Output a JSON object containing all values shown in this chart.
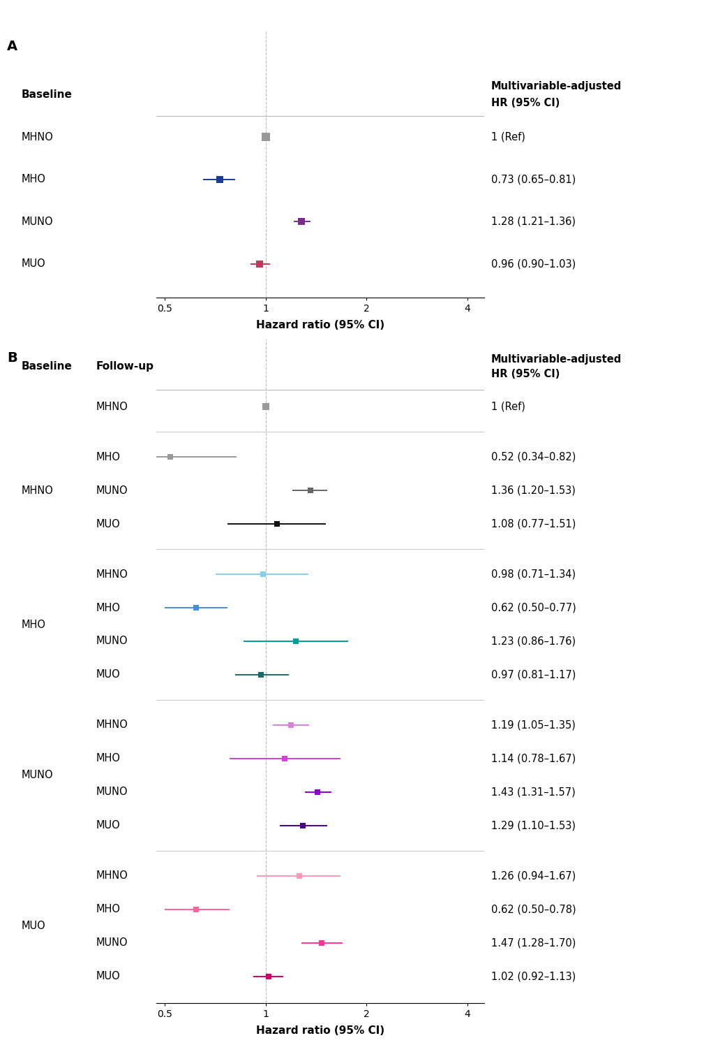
{
  "panel_A": {
    "title": "A",
    "header_label": "Baseline",
    "xlabel": "Hazard ratio (95% CI)",
    "rows": [
      {
        "label": "MHNO",
        "hr": 1.0,
        "lo": 1.0,
        "hi": 1.0,
        "text": "1 (Ref)",
        "color": "#999999",
        "is_ref": true
      },
      {
        "label": "MHO",
        "hr": 0.73,
        "lo": 0.65,
        "hi": 0.81,
        "text": "0.73 (0.65–0.81)",
        "color": "#1F3A93",
        "is_ref": false
      },
      {
        "label": "MUNO",
        "hr": 1.28,
        "lo": 1.21,
        "hi": 1.36,
        "text": "1.28 (1.21–1.36)",
        "color": "#7B2D8B",
        "is_ref": false
      },
      {
        "label": "MUO",
        "hr": 0.96,
        "lo": 0.9,
        "hi": 1.03,
        "text": "0.96 (0.90–1.03)",
        "color": "#C0385A",
        "is_ref": false
      }
    ]
  },
  "panel_B": {
    "title": "B",
    "header_baseline": "Baseline",
    "header_followup": "Follow-up",
    "xlabel": "Hazard ratio (95% CI)",
    "groups": [
      {
        "baseline_label": "",
        "rows": [
          {
            "followup": "MHNO",
            "hr": 1.0,
            "lo": 1.0,
            "hi": 1.0,
            "text": "1 (Ref)",
            "color": "#999999",
            "is_ref": true
          }
        ]
      },
      {
        "baseline_label": "MHNO",
        "rows": [
          {
            "followup": "MHO",
            "hr": 0.52,
            "lo": 0.34,
            "hi": 0.82,
            "text": "0.52 (0.34–0.82)",
            "color": "#999999",
            "is_ref": false
          },
          {
            "followup": "MUNO",
            "hr": 1.36,
            "lo": 1.2,
            "hi": 1.53,
            "text": "1.36 (1.20–1.53)",
            "color": "#666666",
            "is_ref": false
          },
          {
            "followup": "MUO",
            "hr": 1.08,
            "lo": 0.77,
            "hi": 1.51,
            "text": "1.08 (0.77–1.51)",
            "color": "#111111",
            "is_ref": false
          }
        ]
      },
      {
        "baseline_label": "MHO",
        "rows": [
          {
            "followup": "MHNO",
            "hr": 0.98,
            "lo": 0.71,
            "hi": 1.34,
            "text": "0.98 (0.71–1.34)",
            "color": "#87CEEB",
            "is_ref": false
          },
          {
            "followup": "MHO",
            "hr": 0.62,
            "lo": 0.5,
            "hi": 0.77,
            "text": "0.62 (0.50–0.77)",
            "color": "#4490D0",
            "is_ref": false
          },
          {
            "followup": "MUNO",
            "hr": 1.23,
            "lo": 0.86,
            "hi": 1.76,
            "text": "1.23 (0.86–1.76)",
            "color": "#009B9B",
            "is_ref": false
          },
          {
            "followup": "MUO",
            "hr": 0.97,
            "lo": 0.81,
            "hi": 1.17,
            "text": "0.97 (0.81–1.17)",
            "color": "#1B6B6B",
            "is_ref": false
          }
        ]
      },
      {
        "baseline_label": "MUNO",
        "rows": [
          {
            "followup": "MHNO",
            "hr": 1.19,
            "lo": 1.05,
            "hi": 1.35,
            "text": "1.19 (1.05–1.35)",
            "color": "#DA80DA",
            "is_ref": false
          },
          {
            "followup": "MHO",
            "hr": 1.14,
            "lo": 0.78,
            "hi": 1.67,
            "text": "1.14 (0.78–1.67)",
            "color": "#CC44CC",
            "is_ref": false
          },
          {
            "followup": "MUNO",
            "hr": 1.43,
            "lo": 1.31,
            "hi": 1.57,
            "text": "1.43 (1.31–1.57)",
            "color": "#8B00CC",
            "is_ref": false
          },
          {
            "followup": "MUO",
            "hr": 1.29,
            "lo": 1.1,
            "hi": 1.53,
            "text": "1.29 (1.10–1.53)",
            "color": "#4B0082",
            "is_ref": false
          }
        ]
      },
      {
        "baseline_label": "MUO",
        "rows": [
          {
            "followup": "MHNO",
            "hr": 1.26,
            "lo": 0.94,
            "hi": 1.67,
            "text": "1.26 (0.94–1.67)",
            "color": "#FF99BB",
            "is_ref": false
          },
          {
            "followup": "MHO",
            "hr": 0.62,
            "lo": 0.5,
            "hi": 0.78,
            "text": "0.62 (0.50–0.78)",
            "color": "#FF6699",
            "is_ref": false
          },
          {
            "followup": "MUNO",
            "hr": 1.47,
            "lo": 1.28,
            "hi": 1.7,
            "text": "1.47 (1.28–1.70)",
            "color": "#FF3399",
            "is_ref": false
          },
          {
            "followup": "MUO",
            "hr": 1.02,
            "lo": 0.92,
            "hi": 1.13,
            "text": "1.02 (0.92–1.13)",
            "color": "#CC0066",
            "is_ref": false
          }
        ]
      }
    ]
  },
  "xticks": [
    0.5,
    1.0,
    2.0,
    4.0
  ],
  "xticklabels": [
    "0.5",
    "1",
    "2",
    "4"
  ],
  "xlog_min": -0.75,
  "xlog_max": 1.5
}
